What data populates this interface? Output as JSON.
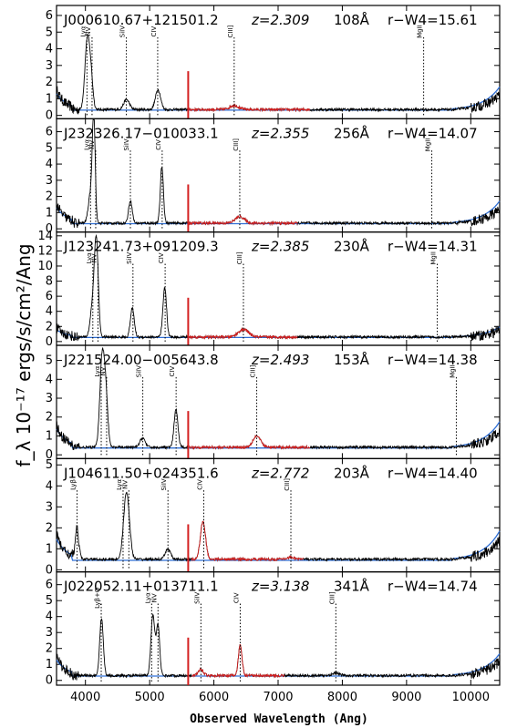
{
  "chart_data": {
    "type": "line",
    "ylabel": "f_λ  10⁻¹⁷ ergs/s/cm²/Ang",
    "xlabel": "Observed Wavelength (Ang)",
    "xlim": [
      3550,
      10450
    ],
    "x_ticks": [
      4000,
      5000,
      6000,
      7000,
      8000,
      9000,
      10000
    ],
    "colors": {
      "spectrum": "#000000",
      "continuum": "#2f6fd6",
      "highlight": "#d42020",
      "marker": "#d42020"
    },
    "panels": [
      {
        "object": "J000610.67+121501.2",
        "redshift": "z=2.309",
        "ew": "108Å",
        "color": "r−W4=15.61",
        "ylim": [
          -0.2,
          6.6
        ],
        "y_ticks": [
          0,
          1,
          2,
          3,
          4,
          5,
          6
        ],
        "lines": [
          {
            "name": "Lyα",
            "x": 4024
          },
          {
            "name": "NV",
            "x": 4103
          },
          {
            "name": "SiIV",
            "x": 4637
          },
          {
            "name": "CIV",
            "x": 5125
          },
          {
            "name": "CIII]",
            "x": 6316
          },
          {
            "name": "MgII",
            "x": 9266
          }
        ],
        "peaks": [
          {
            "x": 4030,
            "h": 4.2,
            "w": 38
          },
          {
            "x": 4090,
            "h": 1.5,
            "w": 30
          },
          {
            "x": 4640,
            "h": 0.6,
            "w": 45
          },
          {
            "x": 5130,
            "h": 1.2,
            "w": 40
          },
          {
            "x": 6316,
            "h": 0.25,
            "w": 70
          }
        ],
        "base": 0.35,
        "red_range": [
          5600,
          7500
        ]
      },
      {
        "object": "J232326.17−010033.1",
        "redshift": "z=2.355",
        "ew": "256Å",
        "color": "r−W4=14.07",
        "ylim": [
          -0.2,
          6.8
        ],
        "y_ticks": [
          0,
          1,
          2,
          3,
          4,
          5,
          6
        ],
        "lines": [
          {
            "name": "Lyα",
            "x": 4080
          },
          {
            "name": "NV",
            "x": 4160
          },
          {
            "name": "SiIV",
            "x": 4700
          },
          {
            "name": "CIV",
            "x": 5195
          },
          {
            "name": "CIII]",
            "x": 6403
          },
          {
            "name": "MgII",
            "x": 9393
          }
        ],
        "peaks": [
          {
            "x": 4130,
            "h": 6.4,
            "w": 22
          },
          {
            "x": 4080,
            "h": 1.8,
            "w": 35
          },
          {
            "x": 4700,
            "h": 1.4,
            "w": 28
          },
          {
            "x": 5190,
            "h": 3.5,
            "w": 24
          },
          {
            "x": 6403,
            "h": 0.4,
            "w": 70
          }
        ],
        "base": 0.35,
        "red_range": [
          5600,
          7300
        ]
      },
      {
        "object": "J123241.73+091209.3",
        "redshift": "z=2.385",
        "ew": "230Å",
        "color": "r−W4=14.31",
        "ylim": [
          -0.5,
          14.5
        ],
        "y_ticks": [
          0,
          2,
          4,
          6,
          8,
          10,
          12,
          14
        ],
        "lines": [
          {
            "name": "Lyα",
            "x": 4115
          },
          {
            "name": "NV",
            "x": 4195
          },
          {
            "name": "SiIV",
            "x": 4740
          },
          {
            "name": "CIV",
            "x": 5241
          },
          {
            "name": "CIII]",
            "x": 6460
          },
          {
            "name": "MgII",
            "x": 9478
          }
        ],
        "peaks": [
          {
            "x": 4170,
            "h": 12.5,
            "w": 30
          },
          {
            "x": 4110,
            "h": 4.0,
            "w": 35
          },
          {
            "x": 4730,
            "h": 3.8,
            "w": 30
          },
          {
            "x": 5235,
            "h": 6.5,
            "w": 28
          },
          {
            "x": 6460,
            "h": 1.0,
            "w": 80
          }
        ],
        "base": 0.6,
        "red_range": [
          5600,
          7300
        ]
      },
      {
        "object": "J221524.00−005643.8",
        "redshift": "z=2.493",
        "ew": "153Å",
        "color": "r−W4=14.38",
        "ylim": [
          -0.2,
          5.8
        ],
        "y_ticks": [
          0,
          1,
          2,
          3,
          4,
          5
        ],
        "lines": [
          {
            "name": "Lyα",
            "x": 4246
          },
          {
            "name": "NV",
            "x": 4330
          },
          {
            "name": "SiIV",
            "x": 4893
          },
          {
            "name": "CIV",
            "x": 5412
          },
          {
            "name": "CIII]",
            "x": 6667
          },
          {
            "name": "MgII",
            "x": 9775
          }
        ],
        "peaks": [
          {
            "x": 4260,
            "h": 4.8,
            "w": 35
          },
          {
            "x": 4320,
            "h": 2.5,
            "w": 30
          },
          {
            "x": 4890,
            "h": 0.5,
            "w": 40
          },
          {
            "x": 5410,
            "h": 2.0,
            "w": 30
          },
          {
            "x": 6667,
            "h": 0.6,
            "w": 60
          }
        ],
        "base": 0.4,
        "red_range": [
          5600,
          7500
        ]
      },
      {
        "object": "J104611.50+024351.6",
        "redshift": "z=2.772",
        "ew": "203Å",
        "color": "r−W4=14.40",
        "ylim": [
          -0.1,
          5.3
        ],
        "y_ticks": [
          0,
          1,
          2,
          3,
          4,
          5
        ],
        "lines": [
          {
            "name": "Lyβ",
            "x": 3869
          },
          {
            "name": "Lyα",
            "x": 4586
          },
          {
            "name": "NV",
            "x": 4676
          },
          {
            "name": "SiIV",
            "x": 5285
          },
          {
            "name": "CIV",
            "x": 5843
          },
          {
            "name": "CIII]",
            "x": 7199
          }
        ],
        "peaks": [
          {
            "x": 3869,
            "h": 1.4,
            "w": 30
          },
          {
            "x": 4640,
            "h": 3.2,
            "w": 45
          },
          {
            "x": 5285,
            "h": 0.5,
            "w": 40
          },
          {
            "x": 5830,
            "h": 1.8,
            "w": 40
          },
          {
            "x": 7199,
            "h": 0.1,
            "w": 60
          }
        ],
        "base": 0.5,
        "red_range": [
          5650,
          7400
        ]
      },
      {
        "object": "J022052.11+013711.1",
        "redshift": "z=3.138",
        "ew": "341Å",
        "color": "r−W4=14.74",
        "ylim": [
          -0.3,
          6.8
        ],
        "y_ticks": [
          0,
          1,
          2,
          3,
          4,
          5,
          6
        ],
        "lines": [
          {
            "name": "Lyβ+O",
            "x": 4246
          },
          {
            "name": "Lyα",
            "x": 5031
          },
          {
            "name": "NV",
            "x": 5130
          },
          {
            "name": "SiIV",
            "x": 5798
          },
          {
            "name": "CIV",
            "x": 6410
          },
          {
            "name": "CIII]",
            "x": 7899
          }
        ],
        "peaks": [
          {
            "x": 4250,
            "h": 3.6,
            "w": 28
          },
          {
            "x": 5050,
            "h": 3.8,
            "w": 30
          },
          {
            "x": 5130,
            "h": 3.2,
            "w": 26
          },
          {
            "x": 5798,
            "h": 0.4,
            "w": 40
          },
          {
            "x": 6410,
            "h": 1.9,
            "w": 28
          },
          {
            "x": 7899,
            "h": 0.15,
            "w": 60
          }
        ],
        "base": 0.3,
        "red_range": [
          5650,
          7100
        ]
      }
    ]
  }
}
